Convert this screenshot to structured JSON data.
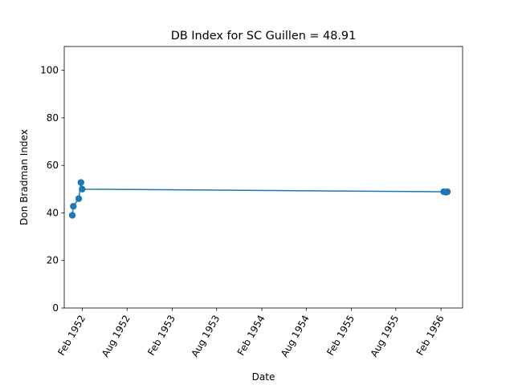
{
  "chart_data": {
    "type": "line",
    "title": "DB Index for SC Guillen = 48.91",
    "xlabel": "Date",
    "ylabel": "Don Bradman Index",
    "ylim": [
      0,
      110
    ],
    "xlim": [
      "1951-11-19",
      "1956-04-29"
    ],
    "y_ticks": [
      0,
      20,
      40,
      60,
      80,
      100
    ],
    "x_ticks": [
      {
        "date": "1952-02-01",
        "label": "Feb 1952"
      },
      {
        "date": "1952-08-01",
        "label": "Aug 1952"
      },
      {
        "date": "1953-02-01",
        "label": "Feb 1953"
      },
      {
        "date": "1953-08-01",
        "label": "Aug 1953"
      },
      {
        "date": "1954-02-01",
        "label": "Feb 1954"
      },
      {
        "date": "1954-08-01",
        "label": "Aug 1954"
      },
      {
        "date": "1955-02-01",
        "label": "Feb 1955"
      },
      {
        "date": "1955-08-01",
        "label": "Aug 1955"
      },
      {
        "date": "1956-02-01",
        "label": "Feb 1956"
      }
    ],
    "grid": false,
    "series": [
      {
        "color": "#1f77b4",
        "marker": "circle",
        "points": [
          {
            "x": "1951-12-22",
            "y": 39.0
          },
          {
            "x": "1951-12-26",
            "y": 42.8
          },
          {
            "x": "1952-01-17",
            "y": 46.0
          },
          {
            "x": "1952-01-26",
            "y": 52.8
          },
          {
            "x": "1952-01-31",
            "y": 50.0
          },
          {
            "x": "1956-02-12",
            "y": 48.9
          },
          {
            "x": "1956-02-22",
            "y": 48.7
          },
          {
            "x": "1956-02-27",
            "y": 48.91
          }
        ]
      }
    ]
  }
}
